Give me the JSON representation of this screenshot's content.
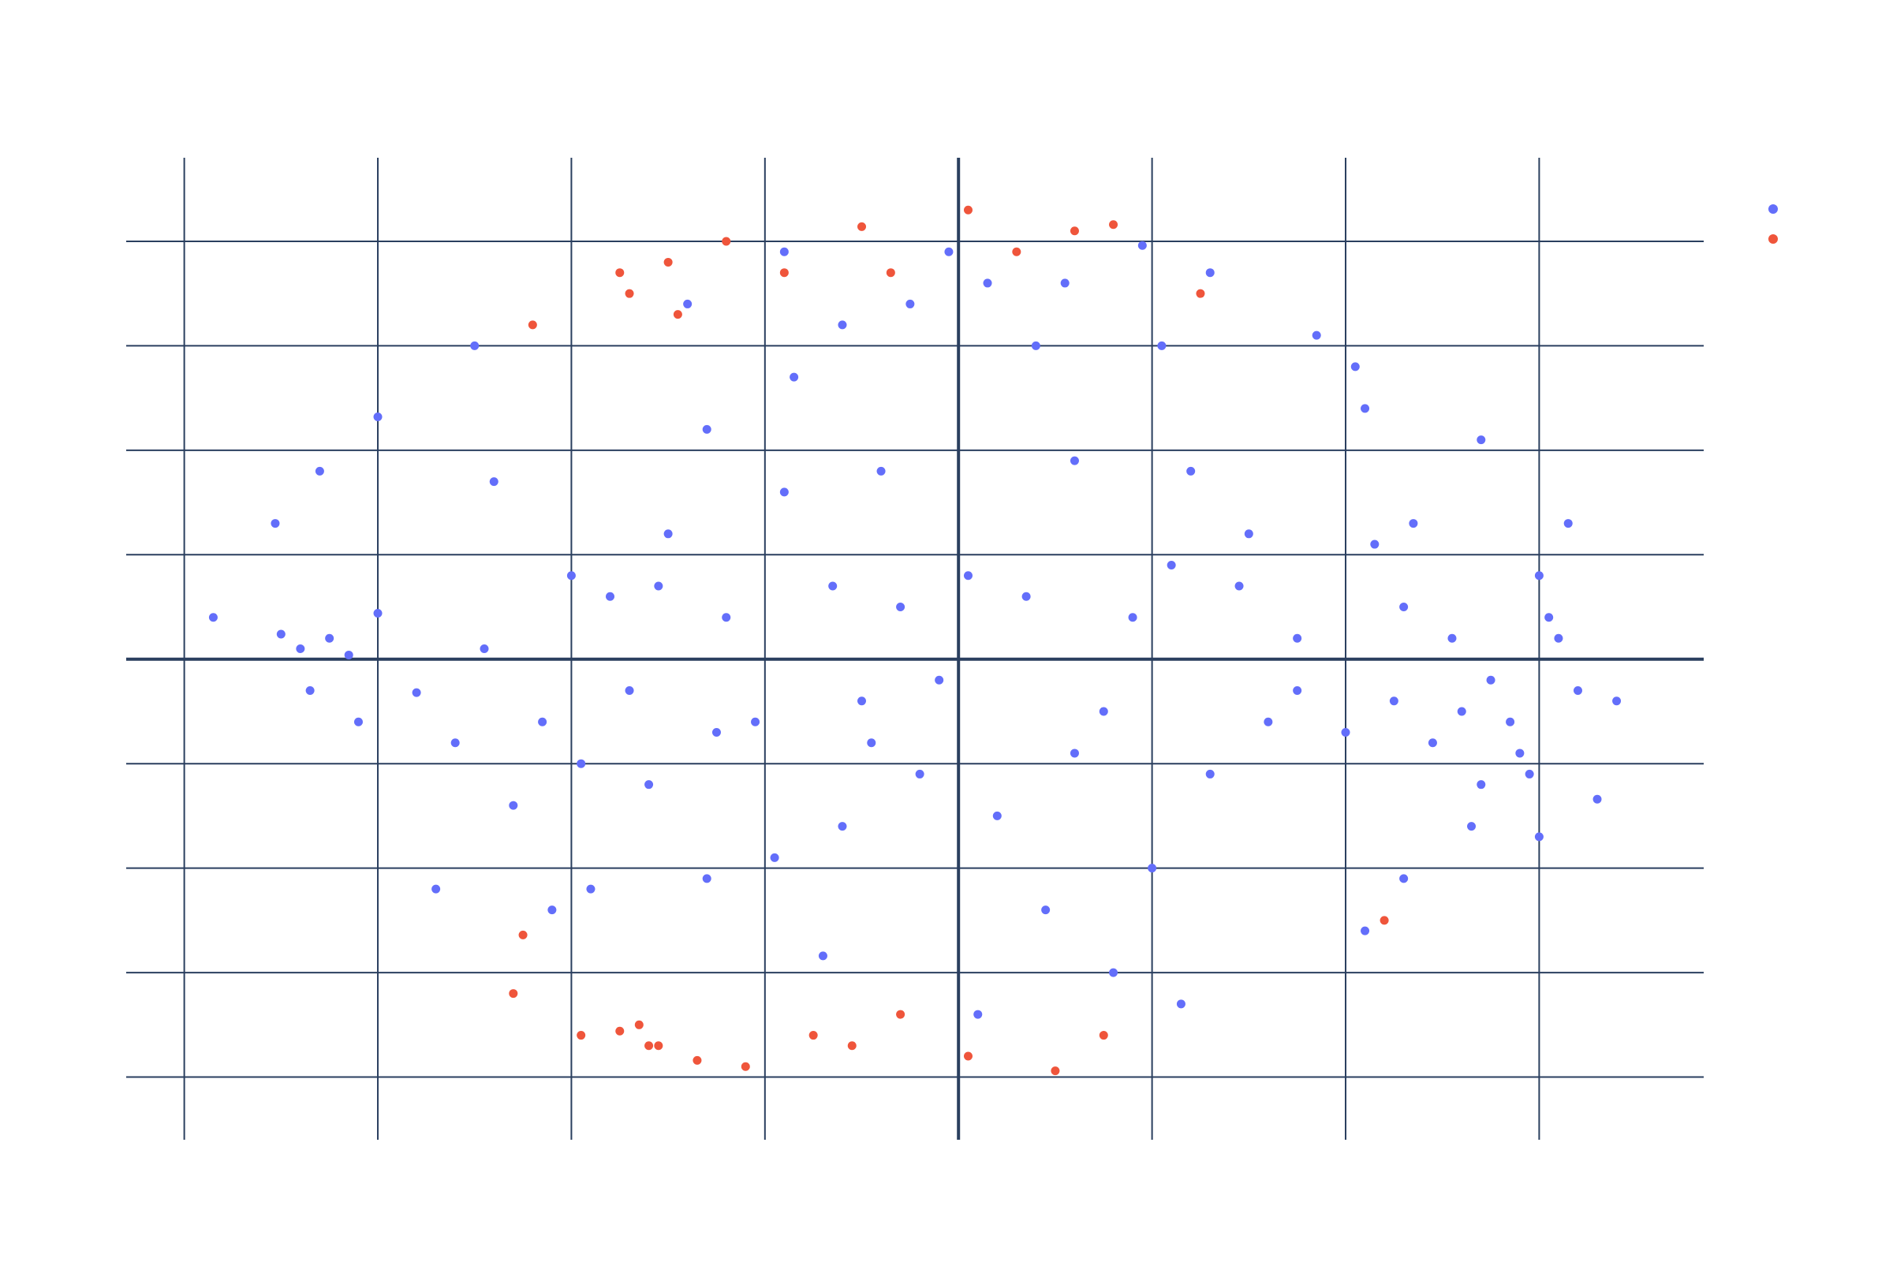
{
  "chart_data": {
    "type": "scatter",
    "title": "",
    "xlabel": "",
    "ylabel": "",
    "xlim": [
      -4.3,
      3.85
    ],
    "ylim": [
      -2.3,
      2.4
    ],
    "x_gridlines": [
      -4,
      -3,
      -2,
      -1,
      0,
      1,
      2,
      3
    ],
    "y_gridlines": [
      -2,
      -1.5,
      -1,
      -0.5,
      0,
      0.5,
      1,
      1.5,
      2
    ],
    "grid": true,
    "legend": "top-right",
    "series": [
      {
        "color": "#636efa",
        "points": [
          [
            -2.5,
            1.5
          ],
          [
            -3.0,
            1.16
          ],
          [
            -3.53,
            0.65
          ],
          [
            -3.85,
            0.2
          ],
          [
            -3.5,
            0.12
          ],
          [
            -3.4,
            0.05
          ],
          [
            -3.25,
            0.1
          ],
          [
            -3.0,
            0.22
          ],
          [
            -3.1,
            -0.3
          ],
          [
            -2.8,
            -0.16
          ],
          [
            -2.6,
            -0.4
          ],
          [
            -2.3,
            -0.7
          ],
          [
            -2.1,
            -1.2
          ],
          [
            -1.9,
            -1.1
          ],
          [
            -1.6,
            -0.6
          ],
          [
            -1.8,
            0.3
          ],
          [
            -1.5,
            0.6
          ],
          [
            -1.3,
            1.1
          ],
          [
            -1.2,
            0.2
          ],
          [
            -0.9,
            0.8
          ],
          [
            -1.05,
            -0.3
          ],
          [
            -0.95,
            -0.95
          ],
          [
            -0.6,
            -0.8
          ],
          [
            -1.3,
            -1.05
          ],
          [
            -0.85,
            1.35
          ],
          [
            -0.6,
            1.6
          ],
          [
            -0.4,
            0.9
          ],
          [
            -0.3,
            0.25
          ],
          [
            -0.5,
            -0.2
          ],
          [
            -0.2,
            -0.55
          ],
          [
            -0.7,
            -1.42
          ],
          [
            0.15,
            1.8
          ],
          [
            0.4,
            1.5
          ],
          [
            0.6,
            0.95
          ],
          [
            0.05,
            0.4
          ],
          [
            -0.1,
            -0.1
          ],
          [
            0.2,
            -0.75
          ],
          [
            0.45,
            -1.2
          ],
          [
            0.8,
            -1.5
          ],
          [
            0.1,
            -1.7
          ],
          [
            -0.9,
            1.95
          ],
          [
            -0.05,
            1.95
          ],
          [
            0.95,
            1.98
          ],
          [
            1.05,
            1.5
          ],
          [
            1.2,
            0.9
          ],
          [
            1.45,
            0.35
          ],
          [
            1.75,
            -0.15
          ],
          [
            1.3,
            -0.55
          ],
          [
            1.0,
            -1.0
          ],
          [
            1.15,
            -1.65
          ],
          [
            1.85,
            1.55
          ],
          [
            2.1,
            1.2
          ],
          [
            2.35,
            0.65
          ],
          [
            2.55,
            0.1
          ],
          [
            2.85,
            -0.3
          ],
          [
            2.65,
            -0.8
          ],
          [
            2.3,
            -1.05
          ],
          [
            2.1,
            -1.3
          ],
          [
            2.7,
            1.05
          ],
          [
            3.0,
            0.4
          ],
          [
            2.75,
            -0.1
          ],
          [
            2.9,
            -0.45
          ],
          [
            2.6,
            -0.25
          ],
          [
            2.7,
            -0.6
          ],
          [
            3.3,
            -0.67
          ],
          [
            3.1,
            0.1
          ],
          [
            3.4,
            -0.2
          ],
          [
            3.2,
            -0.15
          ],
          [
            0.9,
            0.2
          ],
          [
            0.6,
            -0.45
          ],
          [
            -2.0,
            0.4
          ],
          [
            -1.7,
            -0.15
          ],
          [
            -3.3,
            0.9
          ],
          [
            -2.4,
            0.85
          ],
          [
            -1.95,
            -0.5
          ],
          [
            -2.7,
            -1.1
          ],
          [
            -1.4,
            1.7
          ],
          [
            -0.25,
            1.7
          ],
          [
            0.55,
            1.8
          ],
          [
            1.3,
            1.85
          ],
          [
            2.05,
            1.4
          ],
          [
            1.5,
            0.6
          ],
          [
            1.75,
            0.1
          ],
          [
            2.0,
            -0.35
          ],
          [
            2.25,
            -0.2
          ],
          [
            2.45,
            -0.4
          ],
          [
            2.3,
            0.25
          ],
          [
            2.15,
            0.55
          ],
          [
            -3.15,
            0.02
          ],
          [
            -3.35,
            -0.15
          ],
          [
            -2.45,
            0.05
          ],
          [
            -2.15,
            -0.3
          ],
          [
            -1.55,
            0.35
          ],
          [
            -1.25,
            -0.35
          ],
          [
            -0.65,
            0.35
          ],
          [
            -0.45,
            -0.4
          ],
          [
            0.35,
            0.3
          ],
          [
            0.75,
            -0.25
          ],
          [
            1.1,
            0.45
          ],
          [
            1.6,
            -0.3
          ],
          [
            3.05,
            0.2
          ],
          [
            2.95,
            -0.55
          ],
          [
            3.15,
            0.65
          ],
          [
            3.0,
            -0.85
          ]
        ]
      },
      {
        "color": "#ef553b",
        "points": [
          [
            -2.2,
            1.6
          ],
          [
            -1.7,
            1.75
          ],
          [
            -1.5,
            1.9
          ],
          [
            -1.2,
            2.0
          ],
          [
            -0.9,
            1.85
          ],
          [
            -0.5,
            2.07
          ],
          [
            -0.35,
            1.85
          ],
          [
            0.05,
            2.15
          ],
          [
            0.3,
            1.95
          ],
          [
            0.6,
            2.05
          ],
          [
            0.8,
            2.08
          ],
          [
            1.25,
            1.75
          ],
          [
            -1.75,
            1.85
          ],
          [
            -1.45,
            1.65
          ],
          [
            -2.25,
            -1.32
          ],
          [
            -2.3,
            -1.6
          ],
          [
            -1.95,
            -1.8
          ],
          [
            -1.75,
            -1.78
          ],
          [
            -1.55,
            -1.85
          ],
          [
            -1.35,
            -1.92
          ],
          [
            -1.1,
            -1.95
          ],
          [
            -0.75,
            -1.8
          ],
          [
            -0.55,
            -1.85
          ],
          [
            -0.3,
            -1.7
          ],
          [
            0.05,
            -1.9
          ],
          [
            0.5,
            -1.97
          ],
          [
            0.75,
            -1.8
          ],
          [
            2.2,
            -1.25
          ],
          [
            -1.65,
            -1.75
          ],
          [
            -1.6,
            -1.85
          ]
        ]
      }
    ]
  }
}
